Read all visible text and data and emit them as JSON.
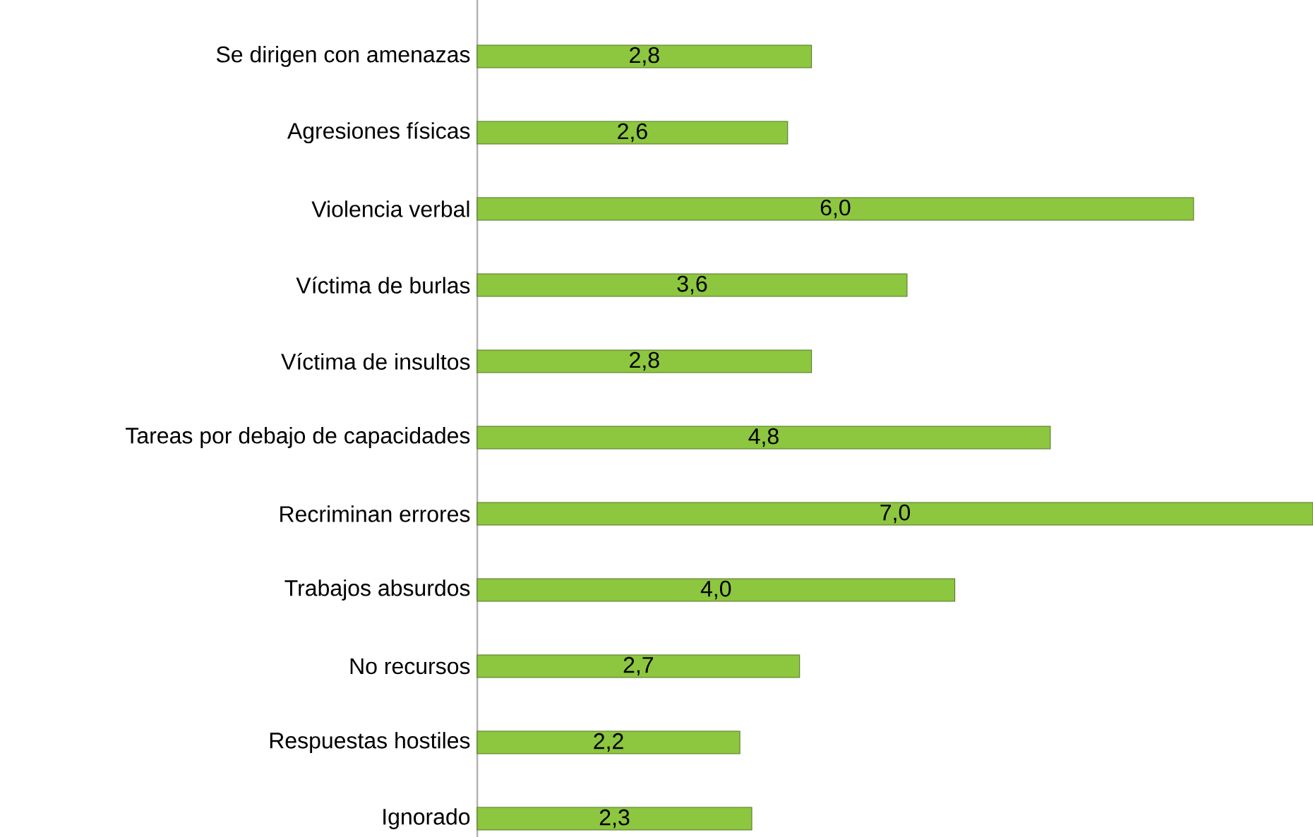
{
  "chart_data": {
    "type": "bar",
    "orientation": "horizontal",
    "categories": [
      "Se dirigen con amenazas",
      "Agresiones físicas",
      "Violencia verbal",
      "Víctima de burlas",
      "Víctima de insultos",
      "Tareas por debajo de capacidades",
      "Recriminan errores",
      "Trabajos absurdos",
      "No recursos",
      "Respuestas hostiles",
      "Ignorado"
    ],
    "values": [
      2.8,
      2.6,
      6.0,
      3.6,
      2.8,
      4.8,
      7.0,
      4.0,
      2.7,
      2.2,
      2.3
    ],
    "value_labels": [
      "2,8",
      "2,6",
      "6,0",
      "3,6",
      "2,8",
      "4,8",
      "7,0",
      "4,0",
      "2,7",
      "2,2",
      "2,3"
    ],
    "color": "#8dc63f",
    "xlim": [
      0,
      7
    ],
    "tick_labels": "y"
  }
}
